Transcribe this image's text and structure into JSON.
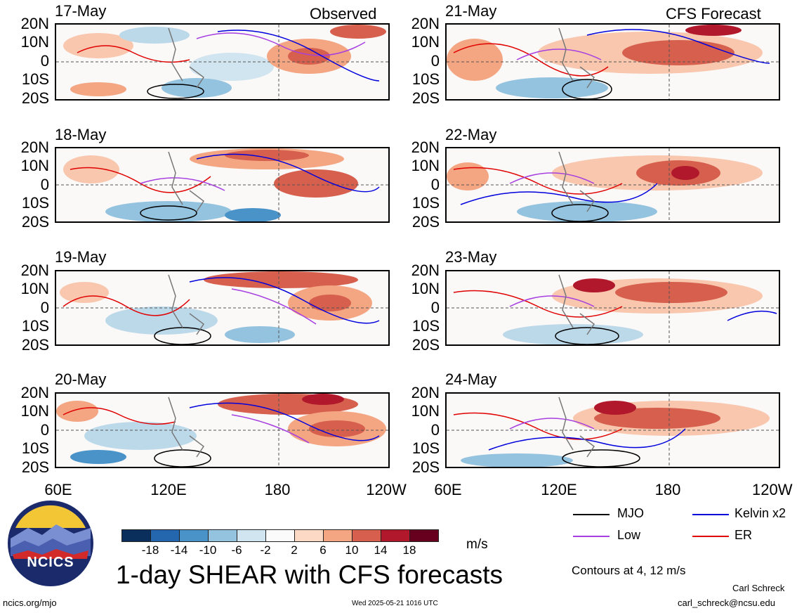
{
  "columns": [
    {
      "title": "Observed",
      "dates": [
        "17-May",
        "18-May",
        "19-May",
        "20-May"
      ]
    },
    {
      "title": "CFS Forecast",
      "dates": [
        "21-May",
        "22-May",
        "23-May",
        "24-May"
      ]
    }
  ],
  "lat_labels": [
    "20N",
    "10N",
    "0",
    "10S",
    "20S"
  ],
  "lon_labels": [
    "60E",
    "120E",
    "180",
    "120W"
  ],
  "colorbar": {
    "labels": [
      "-18",
      "-14",
      "-10",
      "-6",
      "-2",
      "2",
      "6",
      "10",
      "14",
      "18"
    ],
    "colors": [
      "#0b2f5c",
      "#2567ae",
      "#4a93c8",
      "#93c3df",
      "#d1e5f0",
      "#fbfbfb",
      "#fcd9c4",
      "#f4a582",
      "#d6604d",
      "#b2182b",
      "#67001f"
    ],
    "units": "m/s"
  },
  "legend": {
    "items": [
      {
        "label": "MJO",
        "color": "#000000"
      },
      {
        "label": "Kelvin x2",
        "color": "#0000dd"
      },
      {
        "label": "Low",
        "color": "#a63fe0"
      },
      {
        "label": "ER",
        "color": "#e00000"
      }
    ],
    "contours_note": "Contours at 4, 12 m/s"
  },
  "title": "1-day SHEAR with CFS forecasts",
  "logo": {
    "text": "NCICS"
  },
  "footer": {
    "url": "ncics.org/mjo",
    "timestamp": "Wed 2025-05-21 1016 UTC",
    "author": "Carl Schreck",
    "email": "carl_schreck@ncsu.edu"
  }
}
